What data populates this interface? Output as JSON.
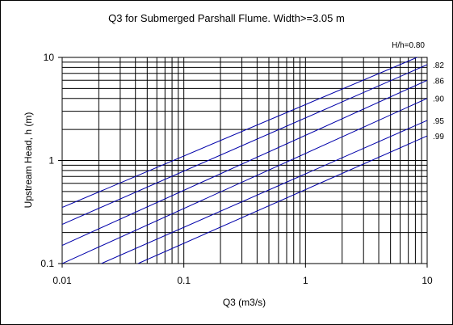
{
  "chart_data": {
    "type": "line",
    "title": "Q3 for Submerged Parshall Flume. Width>=3.05 m",
    "xlabel": "Q3 (m3/s)",
    "ylabel": "Upstream Head, h (m)",
    "x_scale": "log",
    "y_scale": "log",
    "xlim": [
      0.01,
      10
    ],
    "ylim": [
      0.1,
      10
    ],
    "x_ticks": [
      "0.01",
      "0.1",
      "1",
      "10"
    ],
    "y_ticks": [
      "0.1",
      "1",
      "10"
    ],
    "grid": true,
    "line_color": "#0000aa",
    "series": [
      {
        "name": "H/h=0.80",
        "x": [
          0.01,
          10
        ],
        "y": [
          0.35,
          11.0
        ]
      },
      {
        "name": ".82",
        "x": [
          0.01,
          10
        ],
        "y": [
          0.24,
          8.5
        ]
      },
      {
        "name": ".86",
        "x": [
          0.01,
          10
        ],
        "y": [
          0.15,
          6.0
        ]
      },
      {
        "name": ".90",
        "x": [
          0.01,
          10
        ],
        "y": [
          0.1,
          4.0
        ]
      },
      {
        "name": ".95",
        "x": [
          0.021,
          10
        ],
        "y": [
          0.1,
          2.45
        ]
      },
      {
        "name": ".99",
        "x": [
          0.042,
          10
        ],
        "y": [
          0.1,
          1.73
        ]
      }
    ]
  }
}
